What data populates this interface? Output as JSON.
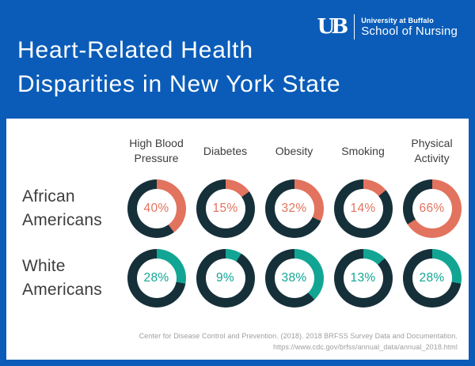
{
  "header": {
    "title_line1": "Heart-Related Health",
    "title_line2": "Disparities in New York State",
    "logo": {
      "monogram": "UB",
      "institution": "University at Buffalo",
      "school": "School of Nursing"
    }
  },
  "colors": {
    "background_blue": "#0A5CB8",
    "ring_dark": "#16303A",
    "african_americans_accent": "#E2735E",
    "white_americans_accent": "#12A593",
    "label_text": "#3D3D3D",
    "footer_text": "#9E9E9E"
  },
  "chart_data": {
    "type": "pie",
    "variant": "donut-grid",
    "title": "Heart-Related Health Disparities in New York State",
    "categories": [
      "High Blood Pressure",
      "Diabetes",
      "Obesity",
      "Smoking",
      "Physical Activity"
    ],
    "series": [
      {
        "name": "African Americans",
        "color": "#E2735E",
        "values": [
          40,
          15,
          32,
          14,
          66
        ]
      },
      {
        "name": "White Americans",
        "color": "#12A593",
        "values": [
          28,
          9,
          38,
          13,
          28
        ]
      }
    ],
    "value_suffix": "%",
    "ring_base_color": "#16303A",
    "start_angle_deg": 0,
    "direction": "clockwise",
    "legend_position": "row-labels-left"
  },
  "footer": {
    "citation_line1": "Center for Disease Control and Prevention. (2018). 2018 BRFSS Survey Data and Documentation.",
    "citation_line2": "https://www.cdc.gov/brfss/annual_data/annual_2018.html"
  }
}
